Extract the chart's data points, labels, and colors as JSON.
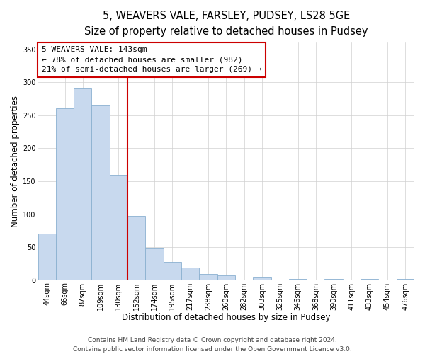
{
  "title": "5, WEAVERS VALE, FARSLEY, PUDSEY, LS28 5GE",
  "subtitle": "Size of property relative to detached houses in Pudsey",
  "xlabel": "Distribution of detached houses by size in Pudsey",
  "ylabel": "Number of detached properties",
  "categories": [
    "44sqm",
    "66sqm",
    "87sqm",
    "109sqm",
    "130sqm",
    "152sqm",
    "174sqm",
    "195sqm",
    "217sqm",
    "238sqm",
    "260sqm",
    "282sqm",
    "303sqm",
    "325sqm",
    "346sqm",
    "368sqm",
    "390sqm",
    "411sqm",
    "433sqm",
    "454sqm",
    "476sqm"
  ],
  "values": [
    70,
    260,
    292,
    265,
    160,
    97,
    49,
    28,
    19,
    9,
    7,
    0,
    5,
    0,
    2,
    0,
    2,
    0,
    2,
    0,
    2
  ],
  "bar_facecolor": "#c8d9ee",
  "bar_edgecolor": "#8ab0d0",
  "vline_color": "#cc0000",
  "annotation_text": "5 WEAVERS VALE: 143sqm\n← 78% of detached houses are smaller (982)\n21% of semi-detached houses are larger (269) →",
  "annotation_box_facecolor": "#ffffff",
  "annotation_box_edgecolor": "#cc0000",
  "ylim": [
    0,
    360
  ],
  "yticks": [
    0,
    50,
    100,
    150,
    200,
    250,
    300,
    350
  ],
  "footer": "Contains HM Land Registry data © Crown copyright and database right 2024.\nContains public sector information licensed under the Open Government Licence v3.0.",
  "title_fontsize": 10.5,
  "subtitle_fontsize": 9.5,
  "axis_label_fontsize": 8.5,
  "tick_fontsize": 7,
  "annotation_fontsize": 8,
  "footer_fontsize": 6.5
}
